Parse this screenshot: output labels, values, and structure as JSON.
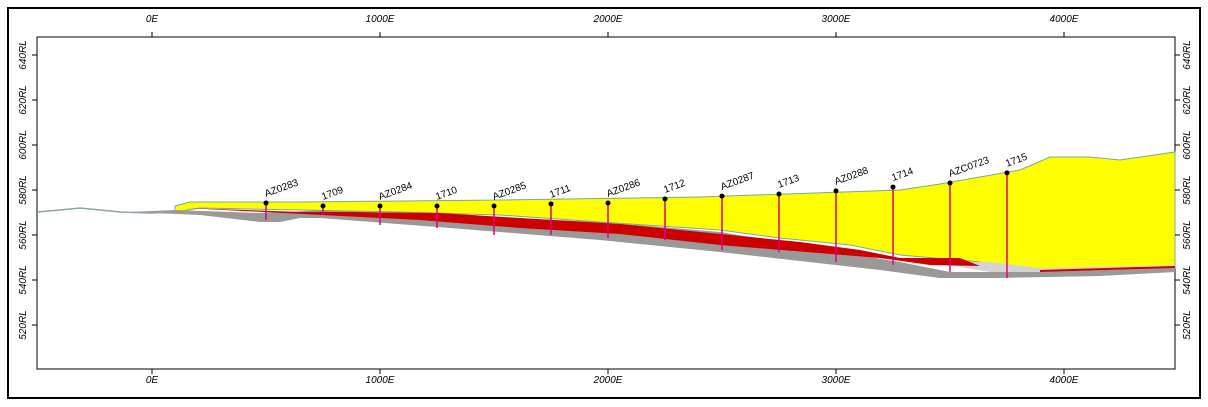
{
  "section": {
    "x_ticks": [
      {
        "value": 0,
        "label": "0E"
      },
      {
        "value": 1000,
        "label": "1000E"
      },
      {
        "value": 2000,
        "label": "2000E"
      },
      {
        "value": 3000,
        "label": "3000E"
      },
      {
        "value": 4000,
        "label": "4000E"
      }
    ],
    "y_ticks": [
      {
        "value": 520,
        "label": "520RL"
      },
      {
        "value": 540,
        "label": "540RL"
      },
      {
        "value": 560,
        "label": "560RL"
      },
      {
        "value": 580,
        "label": "580RL"
      },
      {
        "value": 600,
        "label": "600RL"
      },
      {
        "value": 620,
        "label": "620RL"
      },
      {
        "value": 640,
        "label": "640RL"
      }
    ],
    "holes": [
      {
        "name": "AZ0283",
        "x": 500,
        "collar": 574.2,
        "bottom": 566.7
      },
      {
        "name": "1709",
        "x": 750,
        "collar": 572.9,
        "bottom": 568.9
      },
      {
        "name": "AZ0284",
        "x": 1000,
        "collar": 572.9,
        "bottom": 564.4
      },
      {
        "name": "1710",
        "x": 1250,
        "collar": 572.9,
        "bottom": 563.1
      },
      {
        "name": "AZ0285",
        "x": 1500,
        "collar": 572.9,
        "bottom": 560
      },
      {
        "name": "1711",
        "x": 1750,
        "collar": 573.8,
        "bottom": 560
      },
      {
        "name": "AZ0286",
        "x": 2000,
        "collar": 574.2,
        "bottom": 558.7
      },
      {
        "name": "1712",
        "x": 2250,
        "collar": 576,
        "bottom": 557.8
      },
      {
        "name": "AZ0287",
        "x": 2500,
        "collar": 577.3,
        "bottom": 553.3
      },
      {
        "name": "1713",
        "x": 2750,
        "collar": 578.2,
        "bottom": 552.4
      },
      {
        "name": "AZ0288",
        "x": 3000,
        "collar": 579.6,
        "bottom": 548
      },
      {
        "name": "1714",
        "x": 3250,
        "collar": 581.3,
        "bottom": 546.7
      },
      {
        "name": "AZC0723",
        "x": 3500,
        "collar": 583.1,
        "bottom": 543.6
      },
      {
        "name": "1715",
        "x": 3750,
        "collar": 587.6,
        "bottom": 540.9
      }
    ]
  }
}
